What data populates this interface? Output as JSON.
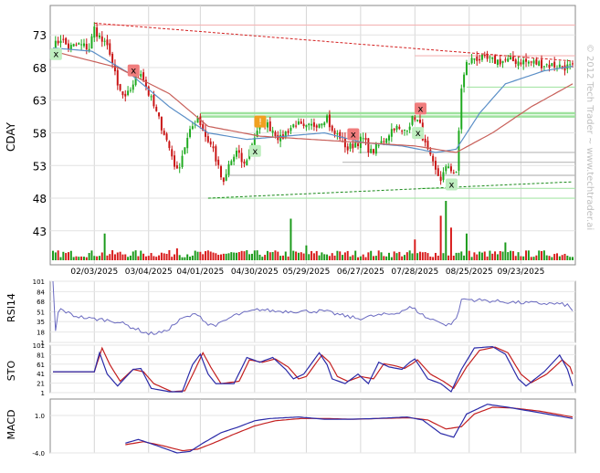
{
  "symbol": "CDAY",
  "watermark": "© 2012 Tech Trader ~ www.techtrader.ai",
  "chart_data": [
    {
      "panel": "price",
      "type": "candlestick",
      "ylabel": "CDAY",
      "ylim": [
        38.5,
        77.5
      ],
      "yticks": [
        "73",
        "68",
        "63",
        "58",
        "53",
        "48",
        "43"
      ],
      "ytick_values": [
        73,
        68,
        63,
        58,
        53,
        48,
        43
      ],
      "x_dates": [
        "02/03/2025",
        "03/04/2025",
        "04/01/2025",
        "04/30/2025",
        "05/29/2025",
        "06/27/2025",
        "07/28/2025",
        "08/25/2025",
        "09/23/2025"
      ],
      "x_grid_index": [
        16,
        37,
        57,
        78,
        98,
        119,
        140,
        161,
        181
      ],
      "n_days": 202,
      "close_anchors": [
        [
          0,
          71
        ],
        [
          3,
          72.5
        ],
        [
          6,
          71
        ],
        [
          10,
          71.5
        ],
        [
          14,
          71
        ],
        [
          16,
          74
        ],
        [
          19,
          72
        ],
        [
          22,
          70.5
        ],
        [
          25,
          65
        ],
        [
          28,
          63
        ],
        [
          32,
          66.5
        ],
        [
          34,
          67.5
        ],
        [
          37,
          64
        ],
        [
          40,
          61
        ],
        [
          43,
          58
        ],
        [
          46,
          54.5
        ],
        [
          48,
          52
        ],
        [
          51,
          56
        ],
        [
          54,
          59
        ],
        [
          56,
          60.5
        ],
        [
          59,
          57.5
        ],
        [
          62,
          55.5
        ],
        [
          64,
          52.5
        ],
        [
          66,
          50
        ],
        [
          68,
          53
        ],
        [
          71,
          55
        ],
        [
          74,
          53
        ],
        [
          77,
          56.5
        ],
        [
          79,
          58.5
        ],
        [
          82,
          59.5
        ],
        [
          85,
          58.5
        ],
        [
          88,
          57
        ],
        [
          91,
          58.5
        ],
        [
          94,
          59.5
        ],
        [
          97,
          58.5
        ],
        [
          100,
          59
        ],
        [
          104,
          60
        ],
        [
          106,
          60.5
        ],
        [
          108,
          58
        ],
        [
          111,
          57.5
        ],
        [
          114,
          55.5
        ],
        [
          117,
          56.5
        ],
        [
          120,
          57
        ],
        [
          123,
          55
        ],
        [
          126,
          56
        ],
        [
          129,
          57.5
        ],
        [
          132,
          59
        ],
        [
          135,
          58
        ],
        [
          138,
          59.5
        ],
        [
          140,
          60.5
        ],
        [
          142,
          59
        ],
        [
          144,
          56
        ],
        [
          146,
          54
        ],
        [
          148,
          52
        ],
        [
          150,
          51
        ],
        [
          153,
          53
        ],
        [
          156,
          51.5
        ],
        [
          158,
          65
        ],
        [
          160,
          68.5
        ],
        [
          163,
          69.5
        ],
        [
          170,
          69
        ],
        [
          180,
          69
        ],
        [
          190,
          68.5
        ],
        [
          201,
          68
        ]
      ],
      "ma_fast": [
        [
          0,
          71
        ],
        [
          15,
          70.5
        ],
        [
          30,
          67
        ],
        [
          45,
          62
        ],
        [
          60,
          58
        ],
        [
          75,
          57
        ],
        [
          90,
          57.5
        ],
        [
          105,
          58
        ],
        [
          120,
          56.5
        ],
        [
          135,
          56
        ],
        [
          148,
          55
        ],
        [
          156,
          55.5
        ],
        [
          165,
          61
        ],
        [
          175,
          65.5
        ],
        [
          190,
          67.5
        ],
        [
          201,
          68.2
        ]
      ],
      "ma_slow": [
        [
          0,
          70.5
        ],
        [
          25,
          68
        ],
        [
          45,
          64
        ],
        [
          60,
          59
        ],
        [
          80,
          57.5
        ],
        [
          100,
          57
        ],
        [
          120,
          56.5
        ],
        [
          140,
          56
        ],
        [
          156,
          55
        ],
        [
          170,
          58
        ],
        [
          185,
          62
        ],
        [
          201,
          65.5
        ]
      ],
      "resistance_line": {
        "from": [
          16,
          74.8
        ],
        "to": [
          201,
          69
        ]
      },
      "support_line": {
        "from": [
          60,
          48
        ],
        "to": [
          201,
          50.5
        ]
      },
      "levels": [
        74.5,
        69.8,
        65,
        61,
        60.5,
        55,
        53.5,
        51.5,
        49.5,
        48
      ],
      "markers": [
        {
          "index": 1,
          "label": "x",
          "kind": "buy"
        },
        {
          "index": 31,
          "label": "x",
          "kind": "sell"
        },
        {
          "index": 78,
          "label": "x",
          "kind": "buy"
        },
        {
          "index": 80,
          "label": "!",
          "kind": "alert"
        },
        {
          "index": 116,
          "label": "x",
          "kind": "sell"
        },
        {
          "index": 142,
          "label": "x",
          "kind": "sell"
        },
        {
          "index": 141,
          "label": "x",
          "kind": "buy"
        },
        {
          "index": 154,
          "label": "x",
          "kind": "buy"
        }
      ],
      "volume_spikes": [
        [
          20,
          0.45
        ],
        [
          48,
          0.2
        ],
        [
          92,
          0.7
        ],
        [
          98,
          0.25
        ],
        [
          140,
          0.35
        ],
        [
          150,
          0.75
        ],
        [
          152,
          1.0
        ],
        [
          154,
          0.55
        ],
        [
          160,
          0.45
        ],
        [
          175,
          0.3
        ]
      ]
    },
    {
      "panel": "rsi",
      "type": "line",
      "ylabel": "RSI14",
      "ylim": [
        1,
        101
      ],
      "yticks": [
        "101",
        "84",
        "68",
        "51",
        "35",
        "18",
        "1"
      ],
      "ytick_values": [
        101,
        84,
        68,
        51,
        35,
        18,
        1
      ],
      "anchors": [
        [
          0,
          101
        ],
        [
          1,
          20
        ],
        [
          2,
          50
        ],
        [
          3,
          55
        ],
        [
          8,
          45
        ],
        [
          14,
          40
        ],
        [
          20,
          38
        ],
        [
          25,
          35
        ],
        [
          31,
          25
        ],
        [
          37,
          15
        ],
        [
          43,
          18
        ],
        [
          50,
          40
        ],
        [
          56,
          48
        ],
        [
          60,
          30
        ],
        [
          64,
          30
        ],
        [
          70,
          45
        ],
        [
          80,
          55
        ],
        [
          86,
          52
        ],
        [
          95,
          52
        ],
        [
          105,
          52
        ],
        [
          112,
          45
        ],
        [
          118,
          40
        ],
        [
          125,
          45
        ],
        [
          132,
          48
        ],
        [
          138,
          58
        ],
        [
          140,
          55
        ],
        [
          145,
          40
        ],
        [
          150,
          35
        ],
        [
          152,
          28
        ],
        [
          155,
          35
        ],
        [
          157,
          50
        ],
        [
          158,
          72
        ],
        [
          165,
          70
        ],
        [
          180,
          66
        ],
        [
          195,
          64
        ],
        [
          199,
          62
        ],
        [
          201,
          52
        ]
      ]
    },
    {
      "panel": "stochastic",
      "type": "line",
      "ylabel": "STO",
      "ylim": [
        1,
        101
      ],
      "yticks": [
        "101",
        "81",
        "61",
        "41",
        "21",
        "1"
      ],
      "ytick_values": [
        101,
        81,
        61,
        41,
        21,
        1
      ],
      "k_anchors": [
        [
          0,
          45
        ],
        [
          16,
          45
        ],
        [
          18,
          85
        ],
        [
          21,
          40
        ],
        [
          25,
          15
        ],
        [
          31,
          50
        ],
        [
          34,
          52
        ],
        [
          38,
          10
        ],
        [
          45,
          3
        ],
        [
          50,
          3
        ],
        [
          54,
          60
        ],
        [
          57,
          82
        ],
        [
          60,
          40
        ],
        [
          63,
          20
        ],
        [
          70,
          20
        ],
        [
          75,
          75
        ],
        [
          80,
          65
        ],
        [
          85,
          75
        ],
        [
          90,
          50
        ],
        [
          93,
          30
        ],
        [
          97,
          40
        ],
        [
          103,
          85
        ],
        [
          106,
          60
        ],
        [
          108,
          30
        ],
        [
          113,
          20
        ],
        [
          118,
          40
        ],
        [
          122,
          20
        ],
        [
          126,
          65
        ],
        [
          130,
          55
        ],
        [
          135,
          50
        ],
        [
          138,
          65
        ],
        [
          140,
          72
        ],
        [
          145,
          30
        ],
        [
          150,
          20
        ],
        [
          154,
          3
        ],
        [
          158,
          50
        ],
        [
          163,
          95
        ],
        [
          170,
          98
        ],
        [
          175,
          82
        ],
        [
          180,
          30
        ],
        [
          183,
          15
        ],
        [
          190,
          45
        ],
        [
          196,
          80
        ],
        [
          199,
          50
        ],
        [
          201,
          15
        ]
      ],
      "d_anchors": [
        [
          0,
          45
        ],
        [
          16,
          45
        ],
        [
          19,
          95
        ],
        [
          22,
          60
        ],
        [
          26,
          25
        ],
        [
          31,
          50
        ],
        [
          35,
          45
        ],
        [
          39,
          20
        ],
        [
          46,
          3
        ],
        [
          51,
          5
        ],
        [
          55,
          50
        ],
        [
          58,
          85
        ],
        [
          61,
          55
        ],
        [
          65,
          20
        ],
        [
          72,
          25
        ],
        [
          76,
          70
        ],
        [
          81,
          65
        ],
        [
          86,
          72
        ],
        [
          91,
          55
        ],
        [
          95,
          30
        ],
        [
          98,
          35
        ],
        [
          104,
          80
        ],
        [
          107,
          65
        ],
        [
          110,
          35
        ],
        [
          114,
          25
        ],
        [
          119,
          35
        ],
        [
          124,
          30
        ],
        [
          128,
          62
        ],
        [
          132,
          58
        ],
        [
          136,
          52
        ],
        [
          139,
          62
        ],
        [
          141,
          70
        ],
        [
          146,
          40
        ],
        [
          151,
          25
        ],
        [
          155,
          10
        ],
        [
          160,
          55
        ],
        [
          165,
          90
        ],
        [
          171,
          97
        ],
        [
          176,
          85
        ],
        [
          181,
          40
        ],
        [
          185,
          22
        ],
        [
          191,
          40
        ],
        [
          197,
          70
        ],
        [
          200,
          55
        ],
        [
          201,
          40
        ]
      ]
    },
    {
      "panel": "macd",
      "type": "line",
      "ylabel": "MACD",
      "ylim": [
        -4,
        3.2
      ],
      "yticks": [
        "1.0",
        "-4.0"
      ],
      "ytick_values": [
        1.0,
        -4.0
      ],
      "macd_anchors": [
        [
          28,
          -2.7
        ],
        [
          33,
          -2.2
        ],
        [
          40,
          -3.0
        ],
        [
          48,
          -4.0
        ],
        [
          53,
          -3.8
        ],
        [
          58,
          -2.7
        ],
        [
          65,
          -1.3
        ],
        [
          72,
          -0.5
        ],
        [
          78,
          0.3
        ],
        [
          84,
          0.6
        ],
        [
          95,
          0.8
        ],
        [
          105,
          0.5
        ],
        [
          115,
          0.5
        ],
        [
          125,
          0.6
        ],
        [
          137,
          0.8
        ],
        [
          143,
          0.4
        ],
        [
          150,
          -1.4
        ],
        [
          155,
          -1.9
        ],
        [
          160,
          1.2
        ],
        [
          168,
          2.5
        ],
        [
          176,
          2.1
        ],
        [
          186,
          1.5
        ],
        [
          201,
          0.6
        ]
      ],
      "signal_anchors": [
        [
          28,
          -2.9
        ],
        [
          35,
          -2.5
        ],
        [
          42,
          -3.0
        ],
        [
          50,
          -3.7
        ],
        [
          56,
          -3.5
        ],
        [
          62,
          -2.7
        ],
        [
          70,
          -1.5
        ],
        [
          78,
          -0.4
        ],
        [
          86,
          0.3
        ],
        [
          96,
          0.6
        ],
        [
          106,
          0.6
        ],
        [
          116,
          0.5
        ],
        [
          126,
          0.6
        ],
        [
          138,
          0.7
        ],
        [
          145,
          0.4
        ],
        [
          152,
          -0.8
        ],
        [
          158,
          -0.5
        ],
        [
          163,
          1.2
        ],
        [
          170,
          2.1
        ],
        [
          178,
          2.0
        ],
        [
          188,
          1.6
        ],
        [
          201,
          0.8
        ]
      ]
    }
  ]
}
